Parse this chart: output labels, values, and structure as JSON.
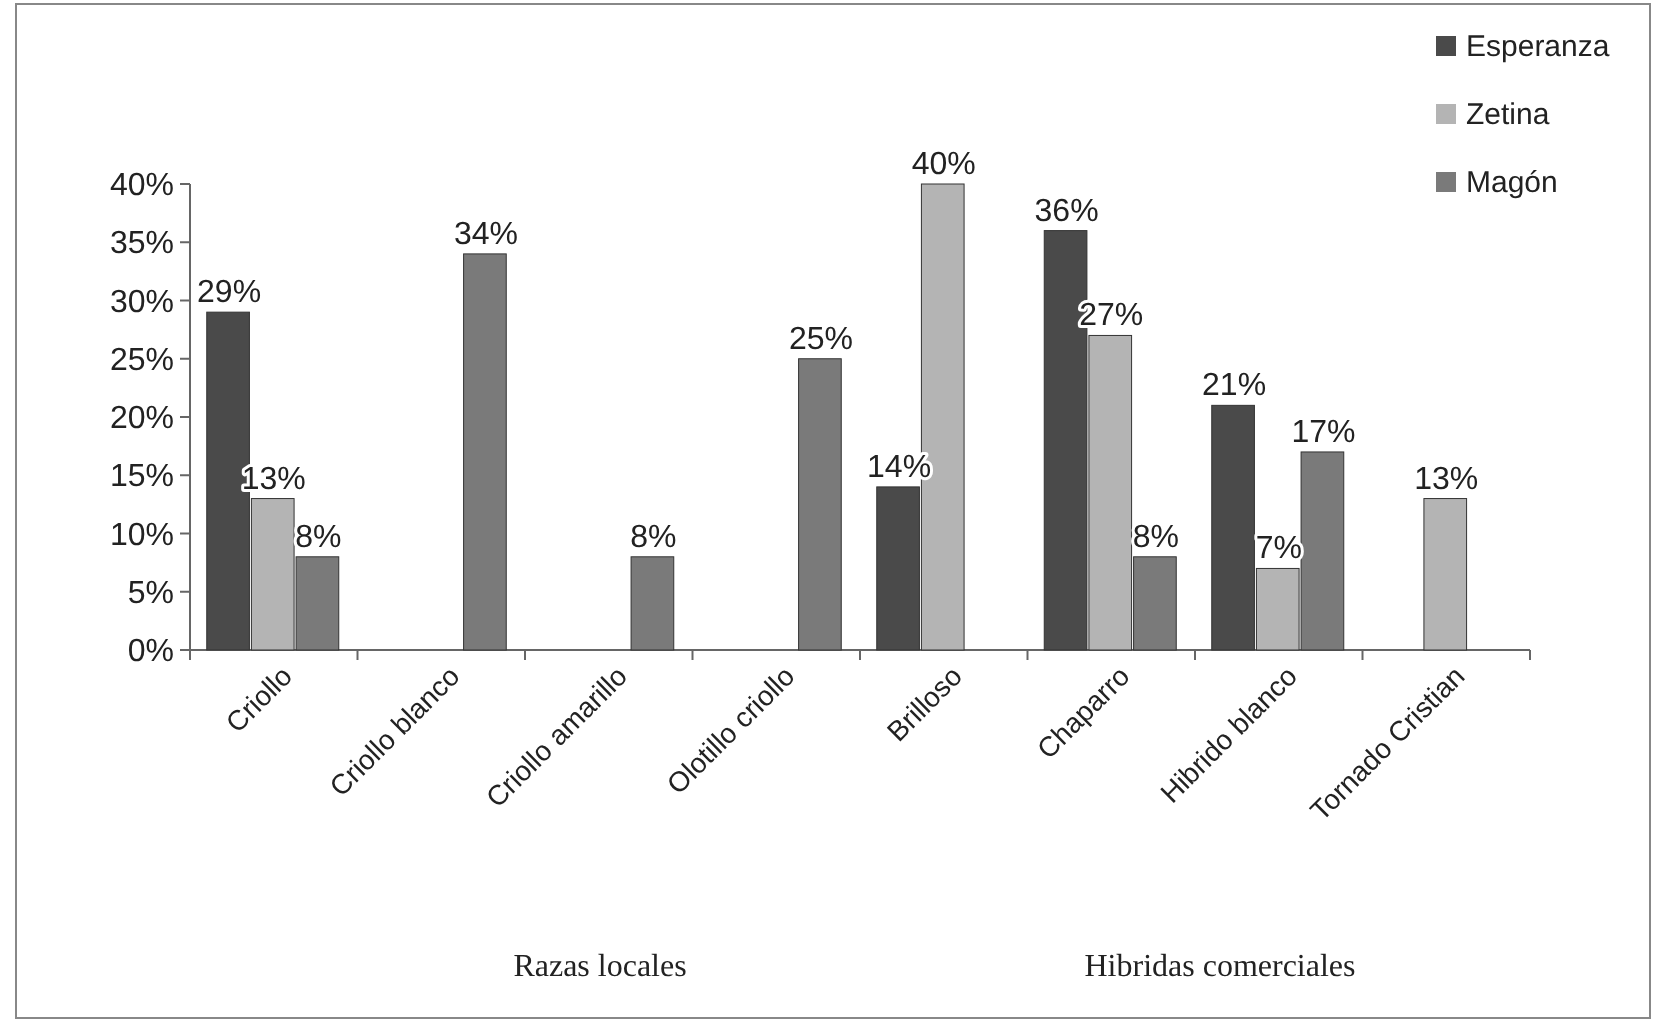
{
  "chart_data": {
    "type": "bar",
    "categories": [
      "Criollo",
      "Criollo blanco",
      "Criollo amarillo",
      "Olotillo criollo",
      "Brilloso",
      "Chaparro",
      "Hibrido blanco",
      "Tornado Cristian"
    ],
    "series": [
      {
        "name": "Esperanza",
        "color": "#4a4a4a",
        "values": [
          29,
          null,
          null,
          null,
          14,
          36,
          21,
          null
        ],
        "value_labels": [
          "29%",
          null,
          null,
          null,
          "14%",
          "36%",
          "21%",
          null
        ]
      },
      {
        "name": "Zetina",
        "color": "#b4b4b4",
        "values": [
          13,
          null,
          null,
          null,
          40,
          27,
          7,
          13
        ],
        "value_labels": [
          "13%",
          null,
          null,
          null,
          "40%",
          "27%",
          "7%",
          "13%"
        ]
      },
      {
        "name": "Magón",
        "color": "#7a7a7a",
        "values": [
          8,
          34,
          8,
          25,
          null,
          8,
          17,
          null
        ],
        "value_labels": [
          "8%",
          "34%",
          "8%",
          "25%",
          null,
          "8%",
          "17%",
          null
        ]
      }
    ],
    "ylim": [
      0,
      40
    ],
    "yticks": [
      {
        "value": 0,
        "label": "0%"
      },
      {
        "value": 5,
        "label": "5%"
      },
      {
        "value": 10,
        "label": "10%"
      },
      {
        "value": 15,
        "label": "15%"
      },
      {
        "value": 20,
        "label": "20%"
      },
      {
        "value": 25,
        "label": "25%"
      },
      {
        "value": 30,
        "label": "30%"
      },
      {
        "value": 35,
        "label": "35%"
      },
      {
        "value": 40,
        "label": "40%"
      }
    ],
    "grid": false,
    "legend": "top right",
    "annotations": [
      "Razas locales",
      "Hibridas comerciales"
    ]
  }
}
